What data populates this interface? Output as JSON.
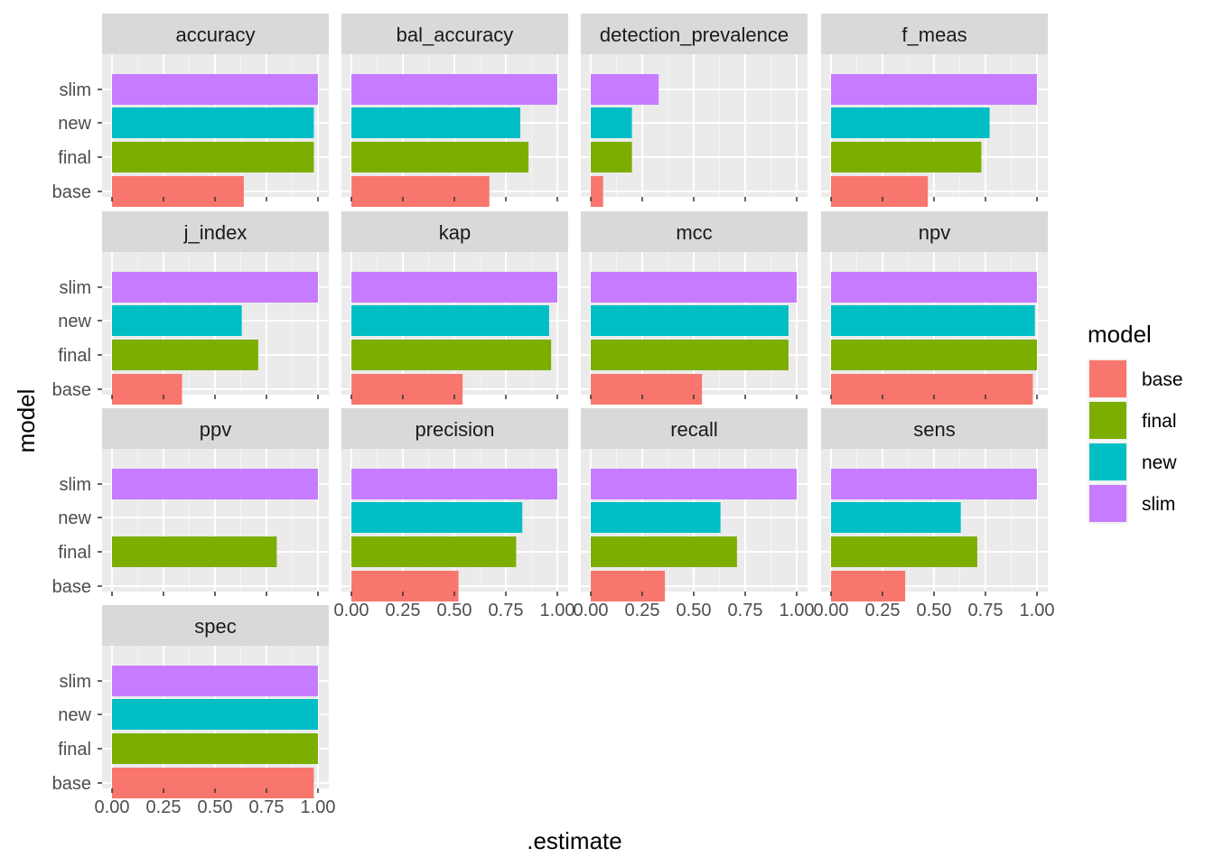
{
  "chart_data": {
    "type": "bar",
    "orientation": "horizontal",
    "facet_by": "metric",
    "xlabel": ".estimate",
    "ylabel": "model",
    "xlim": [
      0,
      1
    ],
    "x_ticks": [
      0,
      0.25,
      0.5,
      0.75,
      1
    ],
    "x_tick_labels": [
      "0.00",
      "0.25",
      "0.50",
      "0.75",
      "1.00"
    ],
    "categories": [
      "base",
      "final",
      "new",
      "slim"
    ],
    "legend": {
      "title": "model",
      "placement": "right",
      "items": [
        {
          "label": "base",
          "color": "#F8766D"
        },
        {
          "label": "final",
          "color": "#7CAE00"
        },
        {
          "label": "new",
          "color": "#00BFC4"
        },
        {
          "label": "slim",
          "color": "#C77CFF"
        }
      ]
    },
    "grid": true,
    "panel_background": "#EBEBEB",
    "strip_background": "#D9D9D9",
    "facets": [
      {
        "name": "accuracy",
        "values": [
          0.64,
          0.98,
          0.98,
          1.0
        ]
      },
      {
        "name": "bal_accuracy",
        "values": [
          0.67,
          0.86,
          0.82,
          1.0
        ]
      },
      {
        "name": "detection_prevalence",
        "values": [
          0.06,
          0.2,
          0.2,
          0.33
        ]
      },
      {
        "name": "f_meas",
        "values": [
          0.47,
          0.73,
          0.77,
          1.0
        ]
      },
      {
        "name": "j_index",
        "values": [
          0.34,
          0.71,
          0.63,
          1.0
        ]
      },
      {
        "name": "kap",
        "values": [
          0.54,
          0.97,
          0.96,
          1.0
        ]
      },
      {
        "name": "mcc",
        "values": [
          0.54,
          0.96,
          0.96,
          1.0
        ]
      },
      {
        "name": "npv",
        "values": [
          0.98,
          1.0,
          0.99,
          1.0
        ]
      },
      {
        "name": "ppv",
        "values": [
          null,
          0.8,
          null,
          1.0
        ]
      },
      {
        "name": "precision",
        "values": [
          0.52,
          0.8,
          0.83,
          1.0
        ]
      },
      {
        "name": "recall",
        "values": [
          0.36,
          0.71,
          0.63,
          1.0
        ]
      },
      {
        "name": "sens",
        "values": [
          0.36,
          0.71,
          0.63,
          1.0
        ]
      },
      {
        "name": "spec",
        "values": [
          0.98,
          1.0,
          1.0,
          1.0
        ]
      }
    ]
  }
}
